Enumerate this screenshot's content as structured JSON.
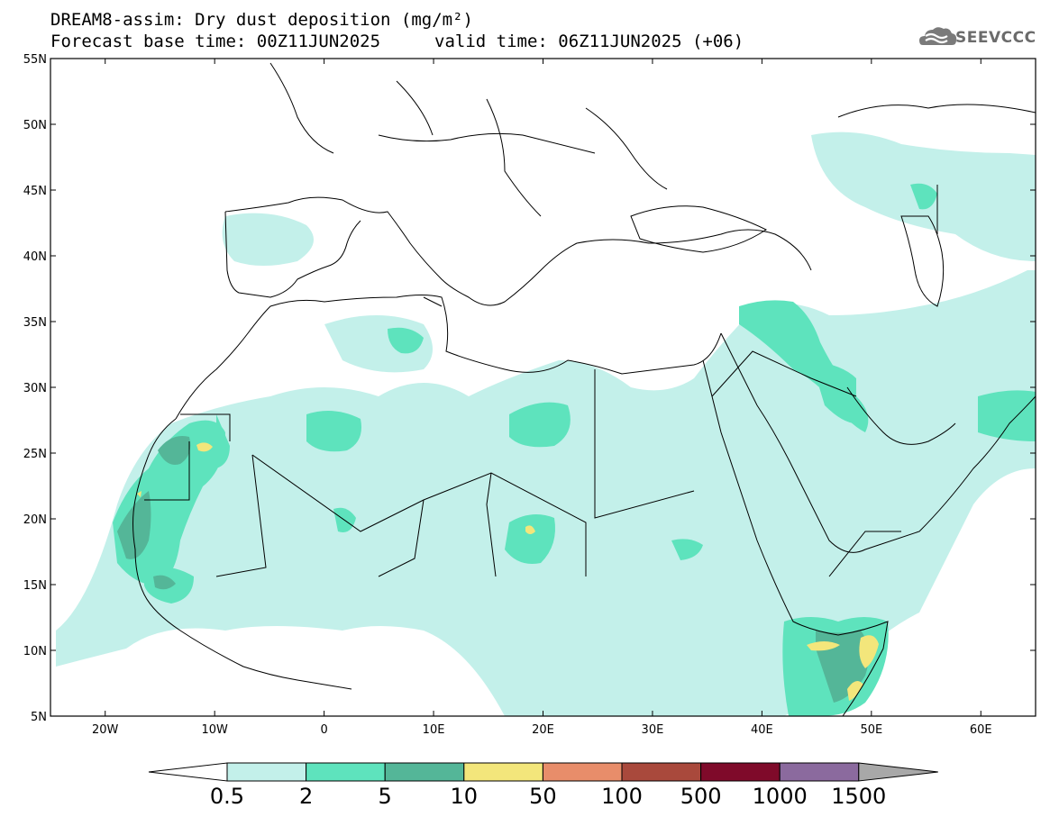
{
  "header": {
    "title_line1": "DREAM8-assim: Dry dust deposition (mg/m²)",
    "title_line2": "Forecast base time: 00Z11JUN2025",
    "valid_time": "valid time: 06Z11JUN2025 (+06)"
  },
  "logo": {
    "text": "SEEVCCC",
    "icon": "cloud-icon"
  },
  "map": {
    "lat_labels": [
      "55N",
      "50N",
      "45N",
      "40N",
      "35N",
      "30N",
      "25N",
      "20N",
      "15N",
      "10N",
      "5N"
    ],
    "lon_labels": [
      "20W",
      "10W",
      "0",
      "10E",
      "20E",
      "30E",
      "40E",
      "50E",
      "60E"
    ],
    "lat_range": [
      5,
      55
    ],
    "lon_range": [
      -25,
      65
    ]
  },
  "colorbar": {
    "levels": [
      "0.5",
      "2",
      "5",
      "10",
      "50",
      "100",
      "500",
      "1000",
      "1500"
    ],
    "colors": [
      "#c3f0ea",
      "#5ee3bd",
      "#54b698",
      "#f3e67b",
      "#e88d6a",
      "#a9493c",
      "#7f0a2a",
      "#8b6a9e",
      "#a8a8a8"
    ]
  }
}
